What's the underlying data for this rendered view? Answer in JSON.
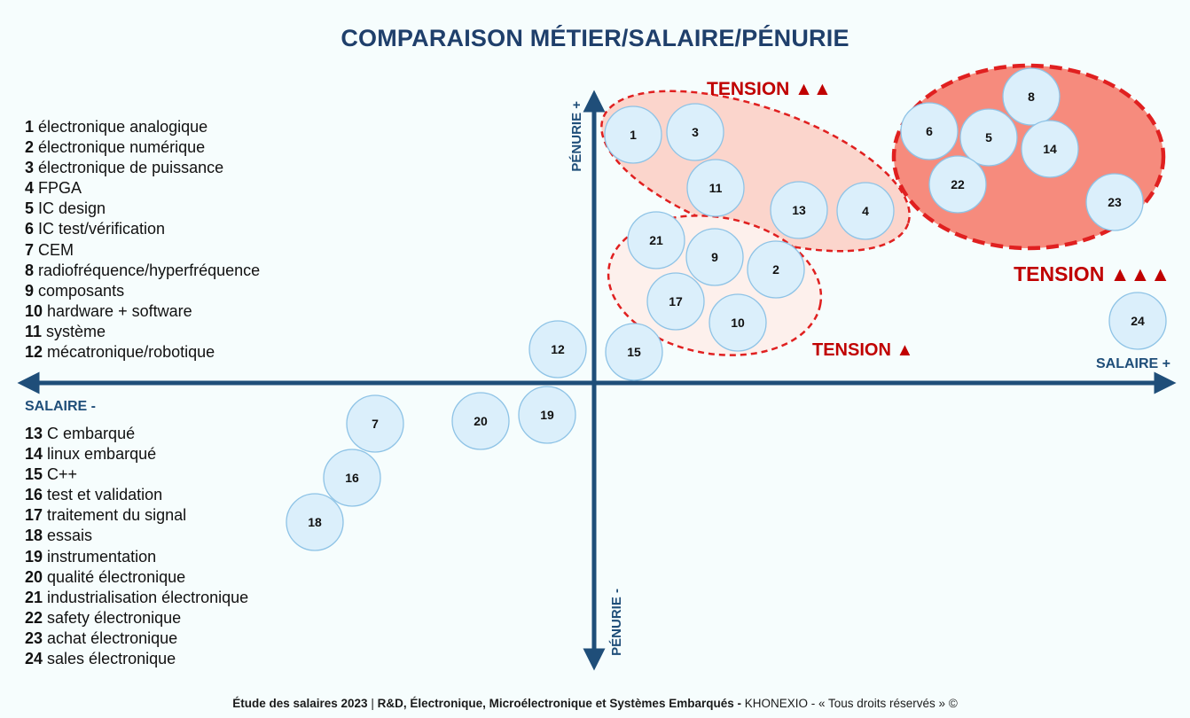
{
  "title": "COMPARAISON MÉTIER/SALAIRE/PÉNURIE",
  "axes": {
    "salaire_plus": "SALAIRE +",
    "salaire_minus": "SALAIRE -",
    "penurie_plus": "PÉNURIE +",
    "penurie_minus": "PÉNURIE -"
  },
  "tension_labels": {
    "low": "TENSION ▲",
    "mid": "TENSION ▲▲",
    "high": "TENSION ▲▲▲"
  },
  "legend": [
    {
      "num": "1",
      "label": "électronique analogique"
    },
    {
      "num": "2",
      "label": "électronique numérique"
    },
    {
      "num": "3",
      "label": "électronique de puissance"
    },
    {
      "num": "4",
      "label": "FPGA"
    },
    {
      "num": "5",
      "label": "IC design"
    },
    {
      "num": "6",
      "label": "IC test/vérification"
    },
    {
      "num": "7",
      "label": "CEM"
    },
    {
      "num": "8",
      "label": "radiofréquence/hyperfréquence"
    },
    {
      "num": "9",
      "label": "composants"
    },
    {
      "num": "10",
      "label": "hardware + software"
    },
    {
      "num": "11",
      "label": "système"
    },
    {
      "num": "12",
      "label": "mécatronique/robotique"
    },
    {
      "num": "13",
      "label": "C embarqué"
    },
    {
      "num": "14",
      "label": "linux embarqué"
    },
    {
      "num": "15",
      "label": "C++"
    },
    {
      "num": "16",
      "label": "test et validation"
    },
    {
      "num": "17",
      "label": "traitement du signal"
    },
    {
      "num": "18",
      "label": "essais"
    },
    {
      "num": "19",
      "label": "instrumentation"
    },
    {
      "num": "20",
      "label": "qualité électronique"
    },
    {
      "num": "21",
      "label": "industrialisation électronique"
    },
    {
      "num": "22",
      "label": "safety électronique"
    },
    {
      "num": "23",
      "label": "achat électronique"
    },
    {
      "num": "24",
      "label": "sales électronique"
    }
  ],
  "bubbles": [
    "1",
    "2",
    "3",
    "4",
    "5",
    "6",
    "7",
    "8",
    "9",
    "10",
    "11",
    "12",
    "13",
    "14",
    "15",
    "16",
    "17",
    "18",
    "19",
    "20",
    "21",
    "22",
    "23",
    "24"
  ],
  "colors": {
    "axis": "#1f4e79",
    "title": "#1f3f6b",
    "tension_text": "#c00000",
    "tension_dash": "#e02020",
    "bubble_fill": "#dbeffb",
    "bubble_stroke": "#8ec3e6",
    "zone_low_fill": "#fdf0ec",
    "zone_mid_fill": "#fbd5cc",
    "zone_high_fill": "#f68b7d"
  },
  "footer": {
    "study": "Étude des salaires 2023",
    "sep": "|",
    "scope": "R&D, Électronique, Microélectronique et Systèmes Embarqués -",
    "brand": "KHONEXIO - « Tous droits réservés » ©"
  }
}
